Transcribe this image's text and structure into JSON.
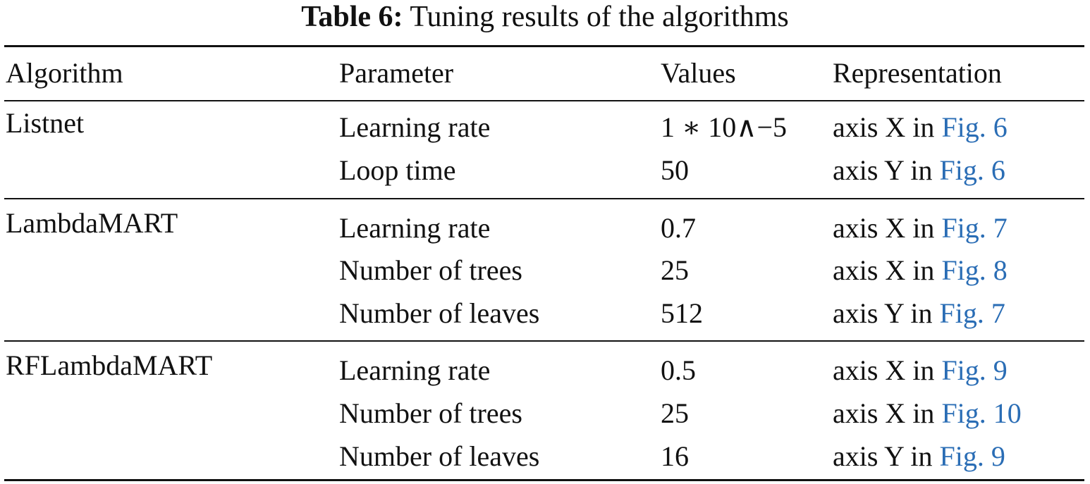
{
  "caption": {
    "label": "Table 6:",
    "text": "Tuning results of the algorithms"
  },
  "colors": {
    "text": "#111111",
    "link": "#2a6db5"
  },
  "headers": {
    "algorithm": "Algorithm",
    "parameter": "Parameter",
    "values": "Values",
    "representation": "Representation"
  },
  "rows": [
    {
      "algorithm": "Listnet",
      "items": [
        {
          "parameter": "Learning rate",
          "value": "1 ∗ 10∧−5",
          "axis": "axis X in",
          "fig": "Fig. 6"
        },
        {
          "parameter": "Loop time",
          "value": "50",
          "axis": "axis Y in",
          "fig": "Fig. 6"
        }
      ]
    },
    {
      "algorithm": "LambdaMART",
      "items": [
        {
          "parameter": "Learning rate",
          "value": "0.7",
          "axis": "axis X in",
          "fig": "Fig. 7"
        },
        {
          "parameter": "Number of trees",
          "value": "25",
          "axis": "axis X in",
          "fig": "Fig. 8"
        },
        {
          "parameter": "Number of leaves",
          "value": "512",
          "axis": "axis Y in",
          "fig": "Fig. 7"
        }
      ]
    },
    {
      "algorithm": "RFLambdaMART",
      "items": [
        {
          "parameter": "Learning rate",
          "value": "0.5",
          "axis": "axis X in",
          "fig": "Fig. 9"
        },
        {
          "parameter": "Number of trees",
          "value": "25",
          "axis": "axis X in",
          "fig": "Fig. 10"
        },
        {
          "parameter": "Number of leaves",
          "value": "16",
          "axis": "axis Y in",
          "fig": "Fig. 9"
        }
      ]
    }
  ]
}
